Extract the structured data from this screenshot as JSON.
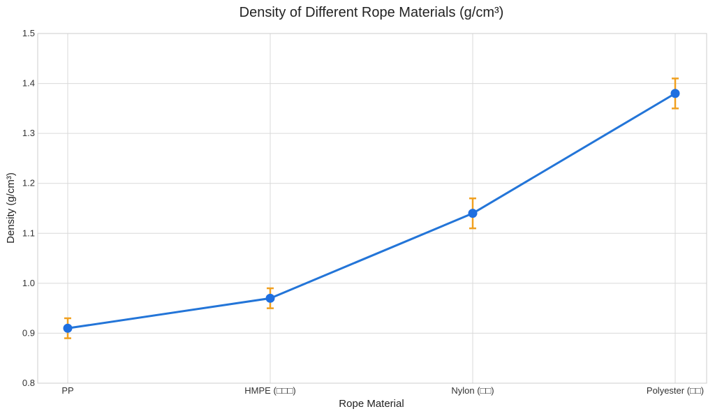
{
  "chart_data": {
    "type": "line",
    "title": "Density of Different Rope Materials (g/cm³)",
    "xlabel": "Rope Material",
    "ylabel": "Density (g/cm³)",
    "categories": [
      "PP",
      "HMPE (□□□)",
      "Nylon (□□)",
      "Polyester (□□)"
    ],
    "series": [
      {
        "values": [
          0.91,
          0.97,
          1.14,
          1.38
        ],
        "error": [
          0.02,
          0.02,
          0.03,
          0.03
        ]
      }
    ],
    "ylim": [
      0.8,
      1.5
    ],
    "yticks": [
      "0.8",
      "0.9",
      "1.0",
      "1.1",
      "1.2",
      "1.3",
      "1.4",
      "1.5"
    ],
    "grid": true,
    "colors": {
      "line": "#2375d8",
      "marker": "#1f6fe0",
      "error": "#f0a020",
      "grid": "#d9d9d9",
      "axis": "#cccccc"
    }
  }
}
